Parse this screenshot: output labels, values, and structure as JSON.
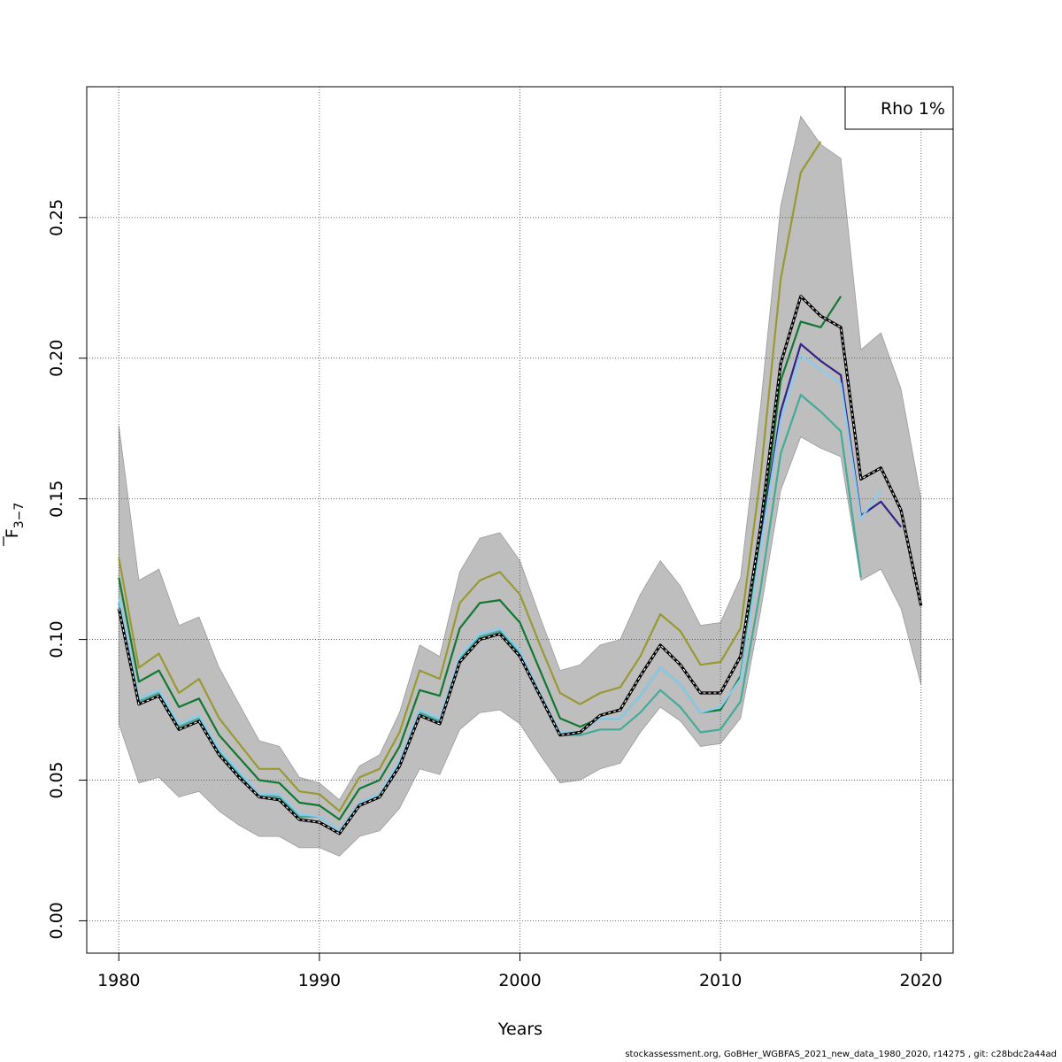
{
  "chart_data": {
    "type": "line",
    "xlabel": "Years",
    "ylabel_main": "F",
    "ylabel_sub": "3−7",
    "xlim": [
      1978.4,
      2021.6
    ],
    "ylim": [
      -0.0115,
      0.2965
    ],
    "x_ticks": [
      1980,
      1990,
      2000,
      2010,
      2020
    ],
    "y_ticks": [
      0.0,
      0.05,
      0.1,
      0.15,
      0.2,
      0.25
    ],
    "y_tick_labels": [
      "0.00",
      "0.05",
      "0.10",
      "0.15",
      "0.20",
      "0.25"
    ],
    "grid": true,
    "legend": {
      "position": "top-right",
      "text": "Rho 1%"
    },
    "band": {
      "color": "#bebebe",
      "years": [
        1980,
        1981,
        1982,
        1983,
        1984,
        1985,
        1986,
        1987,
        1988,
        1989,
        1990,
        1991,
        1992,
        1993,
        1994,
        1995,
        1996,
        1997,
        1998,
        1999,
        2000,
        2001,
        2002,
        2003,
        2004,
        2005,
        2006,
        2007,
        2008,
        2009,
        2010,
        2011,
        2012,
        2013,
        2014,
        2015,
        2016,
        2017,
        2018,
        2019,
        2020
      ],
      "upper": [
        0.176,
        0.121,
        0.125,
        0.105,
        0.108,
        0.09,
        0.077,
        0.064,
        0.062,
        0.051,
        0.049,
        0.043,
        0.055,
        0.059,
        0.074,
        0.098,
        0.094,
        0.124,
        0.136,
        0.138,
        0.128,
        0.108,
        0.089,
        0.091,
        0.098,
        0.1,
        0.116,
        0.128,
        0.119,
        0.105,
        0.106,
        0.122,
        0.183,
        0.254,
        0.286,
        0.276,
        0.271,
        0.203,
        0.209,
        0.189,
        0.15
      ],
      "lower": [
        0.07,
        0.049,
        0.051,
        0.044,
        0.046,
        0.039,
        0.034,
        0.03,
        0.03,
        0.026,
        0.026,
        0.023,
        0.03,
        0.032,
        0.04,
        0.054,
        0.052,
        0.068,
        0.074,
        0.075,
        0.07,
        0.059,
        0.049,
        0.05,
        0.054,
        0.056,
        0.067,
        0.076,
        0.071,
        0.062,
        0.063,
        0.072,
        0.11,
        0.153,
        0.172,
        0.168,
        0.165,
        0.121,
        0.125,
        0.111,
        0.084
      ]
    },
    "series": [
      {
        "color": "#000000",
        "dashed": true,
        "x": [
          1980,
          1981,
          1982,
          1983,
          1984,
          1985,
          1986,
          1987,
          1988,
          1989,
          1990,
          1991,
          1992,
          1993,
          1994,
          1995,
          1996,
          1997,
          1998,
          1999,
          2000,
          2001,
          2002,
          2003,
          2004,
          2005,
          2006,
          2007,
          2008,
          2009,
          2010,
          2011,
          2012,
          2013,
          2014,
          2015,
          2016,
          2017,
          2018,
          2019,
          2020
        ],
        "y": [
          0.111,
          0.077,
          0.08,
          0.068,
          0.071,
          0.059,
          0.051,
          0.044,
          0.043,
          0.036,
          0.035,
          0.031,
          0.041,
          0.044,
          0.055,
          0.073,
          0.07,
          0.092,
          0.1,
          0.102,
          0.094,
          0.08,
          0.066,
          0.067,
          0.073,
          0.075,
          0.087,
          0.098,
          0.091,
          0.081,
          0.081,
          0.094,
          0.14,
          0.198,
          0.222,
          0.215,
          0.211,
          0.157,
          0.161,
          0.146,
          0.112
        ]
      },
      {
        "color": "#999933",
        "x": [
          1980,
          1981,
          1982,
          1983,
          1984,
          1985,
          1986,
          1987,
          1988,
          1989,
          1990,
          1991,
          1992,
          1993,
          1994,
          1995,
          1996,
          1997,
          1998,
          1999,
          2000,
          2001,
          2002,
          2003,
          2004,
          2005,
          2006,
          2007,
          2008,
          2009,
          2010,
          2011,
          2012,
          2013,
          2014,
          2015
        ],
        "y": [
          0.129,
          0.09,
          0.095,
          0.081,
          0.086,
          0.072,
          0.063,
          0.054,
          0.054,
          0.046,
          0.045,
          0.039,
          0.051,
          0.054,
          0.067,
          0.089,
          0.086,
          0.113,
          0.121,
          0.124,
          0.116,
          0.098,
          0.081,
          0.077,
          0.081,
          0.083,
          0.094,
          0.109,
          0.103,
          0.091,
          0.092,
          0.104,
          0.158,
          0.228,
          0.266,
          0.277
        ]
      },
      {
        "color": "#117733",
        "x": [
          1980,
          1981,
          1982,
          1983,
          1984,
          1985,
          1986,
          1987,
          1988,
          1989,
          1990,
          1991,
          1992,
          1993,
          1994,
          1995,
          1996,
          1997,
          1998,
          1999,
          2000,
          2001,
          2002,
          2003,
          2004,
          2005,
          2006,
          2007,
          2008,
          2009,
          2010,
          2011,
          2012,
          2013,
          2014,
          2015,
          2016
        ],
        "y": [
          0.122,
          0.085,
          0.089,
          0.076,
          0.079,
          0.066,
          0.058,
          0.05,
          0.049,
          0.042,
          0.041,
          0.036,
          0.047,
          0.05,
          0.062,
          0.082,
          0.08,
          0.104,
          0.113,
          0.114,
          0.106,
          0.089,
          0.072,
          0.069,
          0.072,
          0.072,
          0.08,
          0.09,
          0.084,
          0.074,
          0.075,
          0.087,
          0.135,
          0.192,
          0.213,
          0.211,
          0.222
        ]
      },
      {
        "color": "#332288",
        "x": [
          2012,
          2013,
          2014,
          2015,
          2016,
          2017,
          2018,
          2019
        ],
        "y": [
          0.134,
          0.181,
          0.205,
          0.199,
          0.194,
          0.144,
          0.149,
          0.14
        ]
      },
      {
        "color": "#88ccee",
        "x": [
          1980,
          1981,
          1982,
          1983,
          1984,
          1985,
          1986,
          1987,
          1988,
          1989,
          1990,
          1991,
          1992,
          1993,
          1994,
          1995,
          1996,
          1997,
          1998,
          1999,
          2000,
          2001,
          2002,
          2003,
          2004,
          2005,
          2006,
          2007,
          2008,
          2009,
          2010,
          2011,
          2012,
          2013,
          2014,
          2015,
          2016,
          2017,
          2018
        ],
        "y": [
          0.115,
          0.079,
          0.082,
          0.07,
          0.073,
          0.061,
          0.053,
          0.045,
          0.045,
          0.038,
          0.037,
          0.032,
          0.042,
          0.045,
          0.057,
          0.075,
          0.072,
          0.094,
          0.102,
          0.104,
          0.096,
          0.081,
          0.067,
          0.067,
          0.072,
          0.072,
          0.08,
          0.09,
          0.084,
          0.074,
          0.076,
          0.086,
          0.133,
          0.178,
          0.201,
          0.196,
          0.191,
          0.143,
          0.153
        ]
      },
      {
        "color": "#44aa99",
        "x": [
          1980,
          1981,
          1982,
          1983,
          1984,
          1985,
          1986,
          1987,
          1988,
          1989,
          1990,
          1991,
          1992,
          1993,
          1994,
          1995,
          1996,
          1997,
          1998,
          1999,
          2000,
          2001,
          2002,
          2003,
          2004,
          2005,
          2006,
          2007,
          2008,
          2009,
          2010,
          2011,
          2012,
          2013,
          2014,
          2015,
          2016,
          2017
        ],
        "y": [
          0.113,
          0.078,
          0.081,
          0.069,
          0.072,
          0.06,
          0.052,
          0.045,
          0.044,
          0.037,
          0.037,
          0.032,
          0.042,
          0.045,
          0.056,
          0.074,
          0.071,
          0.093,
          0.101,
          0.103,
          0.095,
          0.08,
          0.066,
          0.066,
          0.068,
          0.068,
          0.074,
          0.082,
          0.076,
          0.067,
          0.068,
          0.078,
          0.118,
          0.166,
          0.187,
          0.181,
          0.174,
          0.122
        ]
      }
    ]
  },
  "footer": "stockassessment.org, GoBHer_WGBFAS_2021_new_data_1980_2020, r14275 , git: c28bdc2a44ad"
}
